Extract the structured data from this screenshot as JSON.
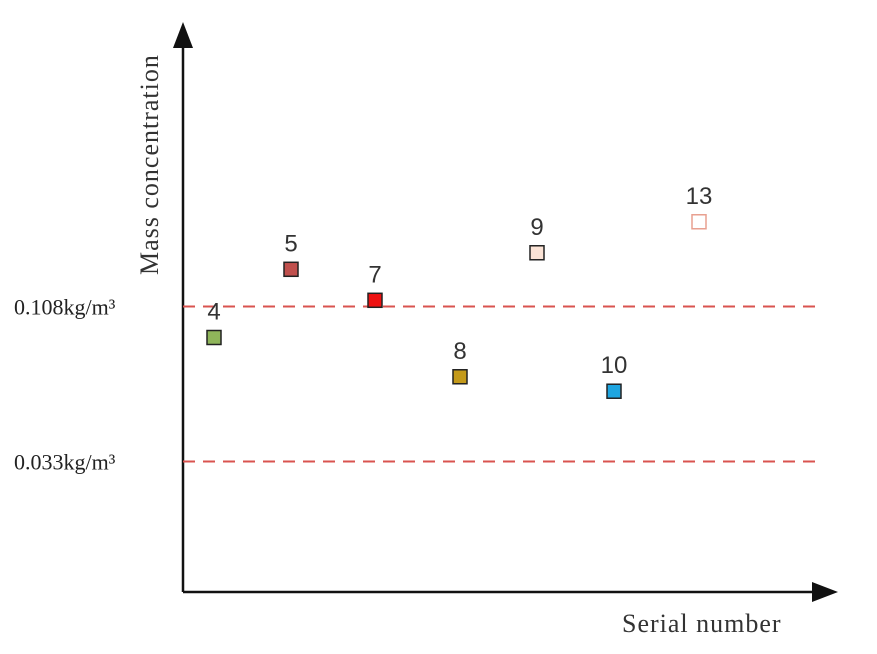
{
  "chart_data": {
    "type": "scatter",
    "title": "",
    "xlabel": "Serial number",
    "ylabel": "Mass concentration",
    "grid": false,
    "reference_lines": [
      {
        "label": "0.108kg/m³",
        "value": 0.108,
        "color": "#d9534f",
        "style": "dashed"
      },
      {
        "label": "0.033kg/m³",
        "value": 0.033,
        "color": "#d9534f",
        "style": "dashed"
      }
    ],
    "points": [
      {
        "label": "4",
        "x": 4,
        "y": 0.093,
        "color": "#8fb55a",
        "filled": true
      },
      {
        "label": "5",
        "x": 5,
        "y": 0.126,
        "color": "#c0504d",
        "filled": true
      },
      {
        "label": "7",
        "x": 7,
        "y": 0.111,
        "color": "#ee1111",
        "filled": true
      },
      {
        "label": "8",
        "x": 8,
        "y": 0.074,
        "color": "#c49a1a",
        "filled": true
      },
      {
        "label": "9",
        "x": 9,
        "y": 0.134,
        "color": "#fbe3d6",
        "filled": true
      },
      {
        "label": "10",
        "x": 10,
        "y": 0.067,
        "color": "#1ea5e0",
        "filled": true
      },
      {
        "label": "13",
        "x": 13,
        "y": 0.149,
        "color": "#e8a090",
        "filled": false
      }
    ]
  }
}
